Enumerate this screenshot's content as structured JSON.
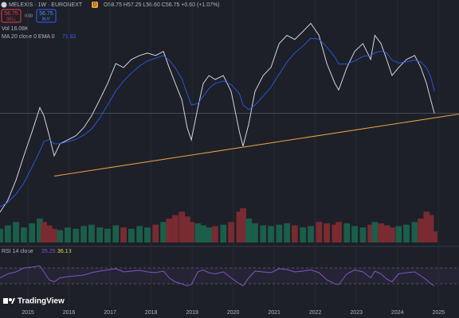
{
  "chart_data": {
    "type": "line",
    "symbol": "MELEXIS · 1W · EURONEXT",
    "badge": "D",
    "ohlc_text": "O58.75 H57.25 L56.60 C56.75 +0.60 (+1.07%)",
    "sell_price": "56.75",
    "sell_label": "SELL",
    "spread": "0.00",
    "buy_price": "56.75",
    "buy_label": "BUY",
    "volume_text": "Vol 16.08K",
    "ema_label": "MA 20 close 0 EMA 0",
    "ema_value": "71.82",
    "rsi_label": "RSI 14 close",
    "rsi_value": "25.25",
    "rsi_ma_value": "36.13",
    "brand": "TradingView",
    "log_scale": true,
    "xlim": [
      2014.32,
      2025.5
    ],
    "xticks": [
      2015,
      2016,
      2017,
      2018,
      2019,
      2020,
      2021,
      2022,
      2023,
      2024,
      2025
    ],
    "ylim": [
      17,
      160
    ],
    "x": [
      2014.32,
      2014.51,
      2014.71,
      2014.9,
      2015.1,
      2015.29,
      2015.39,
      2015.52,
      2015.64,
      2015.78,
      2015.97,
      2016.17,
      2016.36,
      2016.55,
      2016.75,
      2016.94,
      2017.14,
      2017.33,
      2017.52,
      2017.72,
      2017.91,
      2018.11,
      2018.3,
      2018.44,
      2018.59,
      2018.75,
      2018.88,
      2018.98,
      2019.14,
      2019.27,
      2019.41,
      2019.56,
      2019.76,
      2019.95,
      2020.15,
      2020.24,
      2020.38,
      2020.53,
      2020.73,
      2020.92,
      2021.12,
      2021.31,
      2021.5,
      2021.7,
      2021.89,
      2022.09,
      2022.28,
      2022.48,
      2022.57,
      2022.77,
      2022.96,
      2023.16,
      2023.35,
      2023.45,
      2023.6,
      2023.74,
      2023.87,
      2024.03,
      2024.22,
      2024.42,
      2024.57,
      2024.71,
      2024.81,
      2024.9
    ],
    "series": [
      {
        "color": "#d1d4dc",
        "values": [
          19.8,
          22.5,
          27.9,
          36.1,
          46.6,
          60.3,
          55.3,
          44.7,
          36.1,
          41.0,
          42.8,
          44.7,
          48.7,
          55.3,
          65.6,
          77.9,
          96.4,
          92.4,
          100.6,
          105.0,
          107.7,
          105.0,
          109.6,
          92.4,
          77.9,
          65.6,
          48.7,
          42.8,
          60.3,
          77.9,
          84.8,
          81.3,
          84.8,
          71.5,
          46.6,
          40.0,
          50.8,
          71.5,
          84.8,
          92.4,
          119.2,
          130.0,
          124.6,
          135.7,
          147.8,
          130.0,
          96.4,
          77.9,
          72.7,
          92.4,
          109.6,
          119.2,
          100.6,
          130.0,
          119.2,
          100.6,
          84.8,
          92.4,
          100.6,
          105.0,
          92.4,
          77.9,
          65.6,
          56.75
        ]
      },
      {
        "color": "#2962ff",
        "values": [
          21,
          22,
          24,
          27,
          32,
          38,
          42,
          43,
          41,
          41,
          42,
          43,
          45,
          48,
          54,
          62,
          72,
          80,
          87,
          94,
          99,
          102,
          105,
          100,
          92,
          82,
          70,
          62,
          63,
          68,
          74,
          78,
          80,
          77,
          70,
          62,
          59,
          62,
          68,
          75,
          86,
          98,
          108,
          116,
          126,
          125,
          115,
          103,
          96,
          96,
          99,
          104,
          105,
          108,
          110,
          108,
          100,
          97,
          98,
          100,
          98,
          92,
          84,
          71.82
        ]
      }
    ],
    "volume": [
      20,
      25,
      30,
      22,
      28,
      35,
      30,
      25,
      20,
      18,
      22,
      20,
      24,
      26,
      22,
      20,
      25,
      22,
      20,
      24,
      22,
      26,
      30,
      35,
      40,
      45,
      38,
      30,
      28,
      25,
      22,
      24,
      26,
      30,
      45,
      50,
      35,
      28,
      25,
      24,
      26,
      28,
      25,
      22,
      24,
      30,
      28,
      26,
      30,
      28,
      24,
      22,
      26,
      30,
      28,
      25,
      22,
      24,
      26,
      30,
      35,
      45,
      40,
      16.08
    ],
    "rsi": {
      "color": "#7e57c2",
      "ylim": [
        0,
        100
      ],
      "bands": [
        30,
        70
      ],
      "values": [
        45,
        55,
        60,
        70,
        72,
        75,
        60,
        40,
        35,
        45,
        48,
        50,
        52,
        58,
        62,
        65,
        68,
        60,
        62,
        64,
        60,
        58,
        62,
        45,
        35,
        30,
        25,
        28,
        60,
        65,
        58,
        55,
        60,
        45,
        30,
        25,
        45,
        62,
        60,
        58,
        68,
        66,
        60,
        62,
        65,
        58,
        40,
        30,
        28,
        55,
        65,
        60,
        45,
        62,
        55,
        42,
        35,
        55,
        58,
        60,
        50,
        40,
        30,
        25.25
      ]
    },
    "trendline": {
      "color": "#e8a33d",
      "x": [
        2015.64,
        2025.5
      ],
      "values": [
        29.1,
        56.3
      ]
    },
    "hline": {
      "color": "#5d606b",
      "value": 56.75
    }
  }
}
